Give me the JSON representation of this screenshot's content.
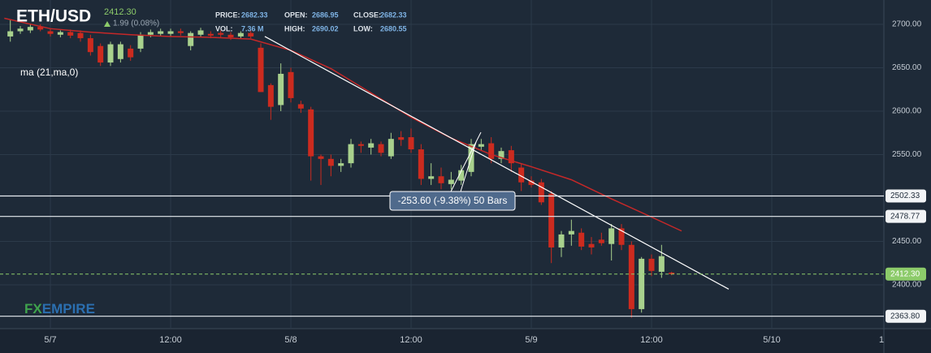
{
  "header": {
    "symbol": "ETH/USD",
    "price": "2412.30",
    "change": "1.99 (0.08%)",
    "stats": [
      [
        "PRICE:",
        "2682.33"
      ],
      [
        "OPEN:",
        "2686.95"
      ],
      [
        "CLOSE:",
        "2682.33"
      ],
      [
        "VOL:",
        "7.36 M"
      ],
      [
        "HIGH:",
        "2690.02"
      ],
      [
        "LOW:",
        "2680.55"
      ]
    ]
  },
  "watermark": {
    "left": "FX",
    "right": "EMPIRE"
  },
  "chart_data": {
    "type": "candlestick",
    "x": [
      -4,
      -3,
      -2,
      -1,
      0,
      1,
      2,
      3,
      4,
      5,
      6,
      7,
      8,
      9,
      10,
      11,
      12,
      13,
      14,
      15,
      16,
      17,
      18,
      19,
      20,
      21,
      22,
      23,
      24,
      25,
      26,
      27,
      28,
      29,
      30,
      31,
      32,
      33,
      34,
      35,
      36,
      37,
      38,
      39,
      40,
      41,
      42,
      43,
      44,
      45,
      46,
      47,
      48,
      49,
      50,
      51,
      52,
      53,
      54,
      55,
      56,
      57,
      58,
      59,
      60,
      61,
      62
    ],
    "open": [
      2686,
      2692,
      2693,
      2697,
      2692,
      2688,
      2691,
      2690,
      2684,
      2675,
      2656,
      2660,
      2672,
      2672,
      2688,
      2689,
      2689,
      2692,
      2675,
      2688,
      2689,
      2690,
      2688,
      2686,
      2690,
      2673,
      2630,
      2607,
      2645,
      2608,
      2602,
      2548,
      2545,
      2537,
      2540,
      2562,
      2558,
      2562,
      2548,
      2570,
      2570,
      2556,
      2522,
      2525,
      2516,
      2520,
      2530,
      2559,
      2563,
      2545,
      2555,
      2535,
      2520,
      2518,
      2505,
      2443,
      2458,
      2460,
      2447,
      2452,
      2447,
      2465,
      2446,
      2372,
      2430,
      2415,
      2414
    ],
    "high": [
      2705,
      2698,
      2700,
      2700,
      2695,
      2693,
      2694,
      2693,
      2688,
      2678,
      2680,
      2680,
      2676,
      2691,
      2694,
      2695,
      2695,
      2695,
      2692,
      2696,
      2692,
      2693,
      2691,
      2692,
      2693,
      2678,
      2632,
      2655,
      2650,
      2612,
      2605,
      2550,
      2550,
      2545,
      2568,
      2565,
      2568,
      2565,
      2575,
      2577,
      2580,
      2562,
      2540,
      2535,
      2530,
      2538,
      2568,
      2568,
      2570,
      2558,
      2560,
      2540,
      2525,
      2522,
      2508,
      2462,
      2475,
      2465,
      2455,
      2460,
      2470,
      2470,
      2450,
      2432,
      2435,
      2446,
      2415
    ],
    "low": [
      2680,
      2689,
      2690,
      2692,
      2686,
      2685,
      2684,
      2680,
      2664,
      2652,
      2652,
      2656,
      2658,
      2668,
      2685,
      2686,
      2686,
      2687,
      2670,
      2685,
      2684,
      2685,
      2682,
      2683,
      2684,
      2622,
      2590,
      2600,
      2610,
      2598,
      2520,
      2515,
      2525,
      2530,
      2535,
      2552,
      2550,
      2548,
      2545,
      2560,
      2552,
      2515,
      2515,
      2510,
      2510,
      2515,
      2525,
      2555,
      2540,
      2540,
      2530,
      2508,
      2512,
      2492,
      2425,
      2432,
      2445,
      2440,
      2435,
      2445,
      2428,
      2440,
      2362,
      2368,
      2410,
      2408,
      2411
    ],
    "close": [
      2692,
      2695,
      2697,
      2694,
      2689,
      2691,
      2687,
      2684,
      2668,
      2656,
      2677,
      2677,
      2662,
      2688,
      2691,
      2692,
      2692,
      2690,
      2690,
      2693,
      2687,
      2688,
      2685,
      2690,
      2686,
      2622,
      2605,
      2643,
      2615,
      2603,
      2548,
      2545,
      2537,
      2540,
      2562,
      2560,
      2563,
      2552,
      2568,
      2567,
      2556,
      2522,
      2525,
      2517,
      2521,
      2532,
      2562,
      2562,
      2545,
      2554,
      2540,
      2518,
      2515,
      2495,
      2443,
      2458,
      2462,
      2444,
      2443,
      2448,
      2465,
      2446,
      2372,
      2430,
      2416,
      2433,
      2412.3
    ],
    "up_color": "#a8d18d",
    "down_color": "#cc2b1f",
    "ma": {
      "name": "ma (21,ma,0)",
      "color": "#c62828",
      "x": [
        -4.6,
        0,
        4,
        8,
        12,
        16,
        20,
        24,
        28,
        32,
        36,
        40,
        44,
        48,
        52,
        56,
        60,
        63
      ],
      "values": [
        2707,
        2695,
        2691,
        2688,
        2686,
        2685,
        2683,
        2670,
        2649,
        2621,
        2593,
        2569,
        2550,
        2536,
        2521,
        2499,
        2478,
        2462
      ]
    },
    "trendline": {
      "x": [
        21.4,
        67.7
      ],
      "values": [
        2686,
        2395
      ]
    },
    "levels": [
      2502.33,
      2478.77,
      {
        "value": 2363.8,
        "label": "2363.80"
      }
    ],
    "last": {
      "value": 2412.3,
      "label": "2412.30"
    },
    "measure": "-253.60 (-9.38%) 50 Bars",
    "xlim": [
      -5.03,
      83.19
    ],
    "ylim": [
      2349.5,
      2728
    ],
    "xticks": [
      {
        "value": 0,
        "label": "5/7"
      },
      {
        "value": 12,
        "label": "12:00"
      },
      {
        "value": 24,
        "label": "5/8"
      },
      {
        "value": 36,
        "label": "12:00"
      },
      {
        "value": 48,
        "label": "5/9"
      },
      {
        "value": 60,
        "label": "12:00"
      },
      {
        "value": 72,
        "label": "5/10"
      },
      {
        "value": 83.2,
        "label": "1"
      }
    ],
    "yticks": [
      {
        "value": 2400,
        "label": "2400.00"
      },
      {
        "value": 2450,
        "label": "2450.00"
      },
      {
        "value": 2550,
        "label": "2550.00"
      },
      {
        "value": 2600,
        "label": "2600.00"
      },
      {
        "value": 2650,
        "label": "2650.00"
      },
      {
        "value": 2700,
        "label": "2700.00"
      }
    ],
    "grid": true
  }
}
